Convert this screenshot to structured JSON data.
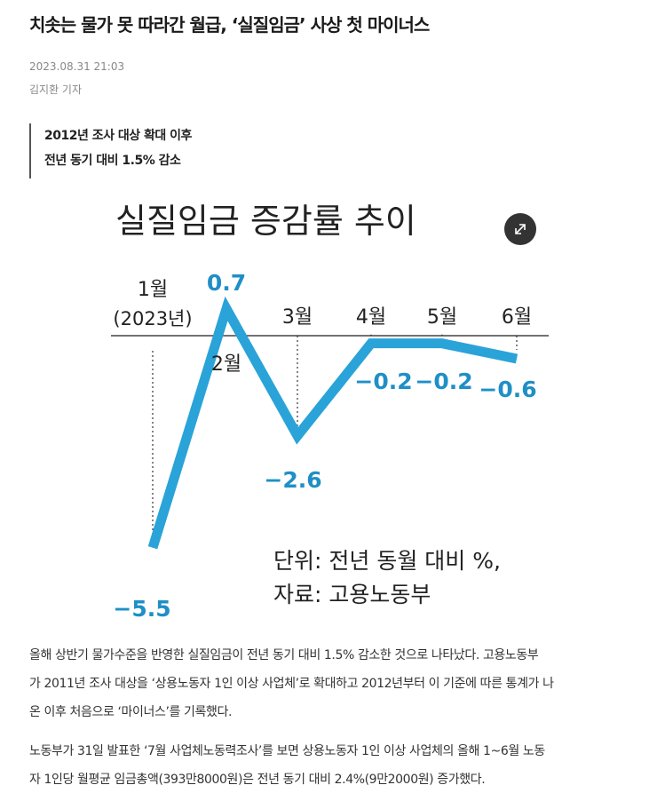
{
  "article": {
    "headline": "치솟는 물가 못 따라간 월급, ‘실질임금’ 사상 첫 마이너스",
    "date": "2023.08.31 21:03",
    "author": "김지환 기자",
    "subheadline": [
      "2012년 조사 대상 확대 이후",
      "전년 동기 대비 1.5% 감소"
    ],
    "paragraphs": [
      [
        "올해 상반기 물가수준을 반영한 실질임금이 전년 동기 대비 1.5% 감소한 것으로 나타났다. 고용노동부",
        "가 2011년 조사 대상을 ‘상용노동자 1인 이상 사업체’로 확대하고 2012년부터 이 기준에 따른 통계가 나",
        "온 이후 처음으로 ‘마이너스’를 기록했다."
      ],
      [
        "노동부가 31일 발표한 ‘7월 사업체노동력조사’를 보면 상용노동자 1인 이상 사업체의 올해 1~6월 노동",
        "자 1인당 월평균 임금총액(393만8000원)은 전년 동기 대비 2.4%(9만2000원) 증가했다."
      ]
    ]
  },
  "chart_data": {
    "type": "line",
    "title": "실질임금 증감률 추이",
    "categories": [
      "1월",
      "2월",
      "3월",
      "4월",
      "5월",
      "6월"
    ],
    "first_category_note": "(2023년)",
    "values": [
      -5.5,
      0.7,
      -2.6,
      -0.2,
      -0.2,
      -0.6
    ],
    "value_labels": [
      "−5.5",
      "0.7",
      "−2.6",
      "−0.2",
      "−0.2",
      "−0.6"
    ],
    "unit_note": "단위: 전년 동월 대비 %,",
    "source_note": "자료: 고용노동부",
    "line_color": "#2aa3d8",
    "label_color": "#1f8fc6",
    "ylim": [
      -6,
      1.2
    ]
  },
  "icons": {
    "expand": "expand-icon"
  }
}
